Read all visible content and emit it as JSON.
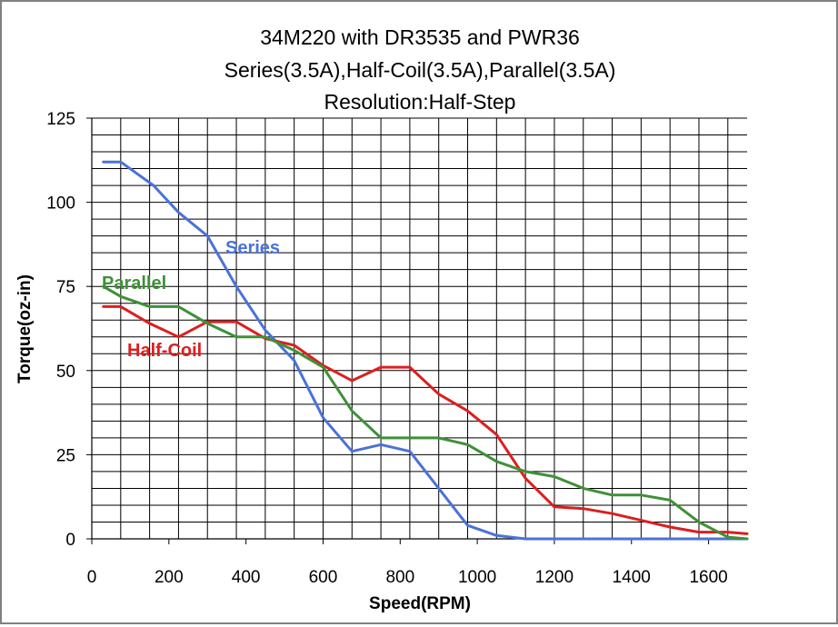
{
  "chart_data": {
    "type": "line",
    "title": "34M220 with DR3535 and PWR36",
    "subtitle": "Series(3.5A),Half-Coil(3.5A),Parallel(3.5A)",
    "subtitle2": "Resolution:Half-Step",
    "xlabel": "Speed(RPM)",
    "ylabel": "Torque(oz-in)",
    "xlim": [
      0,
      1700
    ],
    "ylim": [
      0,
      125
    ],
    "xticks": [
      "0",
      "200",
      "400",
      "600",
      "800",
      "1000",
      "1200",
      "1400",
      "1600"
    ],
    "yticks": [
      "0",
      "25",
      "50",
      "75",
      "100",
      "125"
    ],
    "grid": "horizontal every 5 oz-in, vertical every 75 rpm",
    "series": [
      {
        "name": "Series",
        "color": "#4a72d8",
        "x": [
          30,
          75,
          160,
          225,
          300,
          375,
          450,
          525,
          600,
          675,
          750,
          825,
          900,
          975,
          1050,
          1125,
          1200,
          1275,
          1350,
          1425,
          1500,
          1575,
          1700
        ],
        "y": [
          112,
          112,
          105,
          97,
          90,
          75,
          62,
          53,
          36,
          26,
          28,
          26,
          15,
          4,
          1,
          0,
          0,
          0,
          0,
          0,
          0,
          0,
          0
        ]
      },
      {
        "name": "Half-Coil",
        "color": "#dc1f1f",
        "x": [
          30,
          75,
          150,
          225,
          300,
          375,
          450,
          525,
          600,
          675,
          750,
          825,
          900,
          975,
          1050,
          1125,
          1200,
          1275,
          1350,
          1425,
          1500,
          1575,
          1650,
          1700
        ],
        "y": [
          69,
          69,
          64,
          60,
          64.5,
          64.5,
          59.5,
          57.5,
          51.5,
          47,
          51,
          51,
          43,
          38,
          31,
          18,
          9.5,
          9,
          7.5,
          5.5,
          3.5,
          2,
          2,
          1.5
        ]
      },
      {
        "name": "Parallel",
        "color": "#3f9038",
        "x": [
          30,
          75,
          150,
          225,
          300,
          375,
          450,
          525,
          600,
          675,
          750,
          825,
          900,
          975,
          1050,
          1125,
          1200,
          1275,
          1350,
          1425,
          1500,
          1575,
          1650,
          1700
        ],
        "y": [
          75,
          72,
          69,
          69,
          64,
          60,
          60,
          56,
          51,
          38,
          30,
          30,
          30,
          28,
          23,
          20,
          18.5,
          15,
          13,
          13,
          11.5,
          5,
          0.5,
          0
        ]
      }
    ],
    "annotations": [
      {
        "text": "Series",
        "series": "Series"
      },
      {
        "text": "Parallel",
        "series": "Parallel"
      },
      {
        "text": "Half-Coil",
        "series": "Half-Coil"
      }
    ]
  }
}
